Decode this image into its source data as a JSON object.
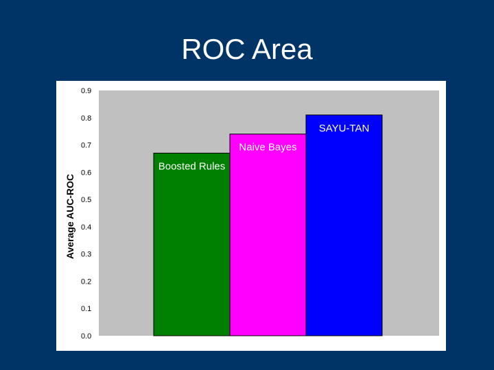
{
  "slide": {
    "title": "ROC Area"
  },
  "chart_data": {
    "type": "bar",
    "title": "",
    "xlabel": "",
    "ylabel": "Average AUC-ROC",
    "ylim": [
      0,
      0.9
    ],
    "yticks": [
      "0.0",
      "0.1",
      "0.2",
      "0.3",
      "0.4",
      "0.5",
      "0.6",
      "0.7",
      "0.8",
      "0.9"
    ],
    "categories": [
      "Boosted Rules",
      "Naive Bayes",
      "SAYU-TAN"
    ],
    "values": [
      0.67,
      0.74,
      0.81
    ],
    "colors": [
      "#008000",
      "#ff00ff",
      "#0000ff"
    ],
    "plot_background": "#c0c0c0",
    "grid": false,
    "legend": "none"
  }
}
